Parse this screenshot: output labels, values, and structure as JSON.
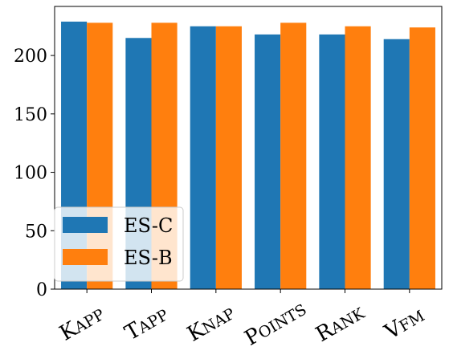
{
  "chart_data": {
    "type": "bar",
    "categories": [
      "KAPP",
      "TAPP",
      "KNAP",
      "POINTS",
      "RANK",
      "VFM"
    ],
    "series": [
      {
        "name": "ES-C",
        "color": "#1f77b4",
        "values": [
          229,
          215,
          225,
          218,
          218,
          214
        ]
      },
      {
        "name": "ES-B",
        "color": "#ff7f0e",
        "values": [
          228,
          228,
          225,
          228,
          225,
          224
        ]
      }
    ],
    "ylim": [
      0,
      242
    ],
    "yticks": [
      0,
      50,
      100,
      150,
      200
    ],
    "legend_position": "lower-left",
    "grid": false,
    "title": "",
    "xlabel": "",
    "ylabel": ""
  }
}
